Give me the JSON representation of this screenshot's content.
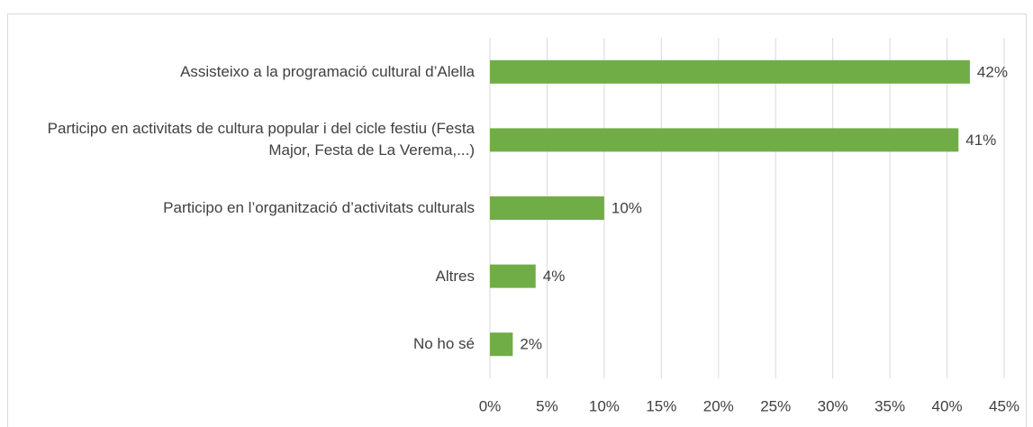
{
  "chart_data": {
    "type": "hbar",
    "categories": [
      "Assisteixo a la programació cultural d’Alella",
      "Participo en activitats de cultura popular i del cicle festiu (Festa Major, Festa de La Verema,...)",
      "Participo en l’organització d’activitats culturals",
      "Altres",
      "No ho sé"
    ],
    "values": [
      42,
      41,
      10,
      4,
      2
    ],
    "value_labels": [
      "42%",
      "41%",
      "10%",
      "4%",
      "2%"
    ],
    "color": "#70ad47",
    "xlim": [
      0,
      45
    ],
    "xticks": [
      {
        "value": 0,
        "label": "0%"
      },
      {
        "value": 5,
        "label": "5%"
      },
      {
        "value": 10,
        "label": "10%"
      },
      {
        "value": 15,
        "label": "15%"
      },
      {
        "value": 20,
        "label": "20%"
      },
      {
        "value": 25,
        "label": "25%"
      },
      {
        "value": 30,
        "label": "30%"
      },
      {
        "value": 35,
        "label": "35%"
      },
      {
        "value": 40,
        "label": "40%"
      },
      {
        "value": 45,
        "label": "45%"
      }
    ],
    "grid": true
  }
}
